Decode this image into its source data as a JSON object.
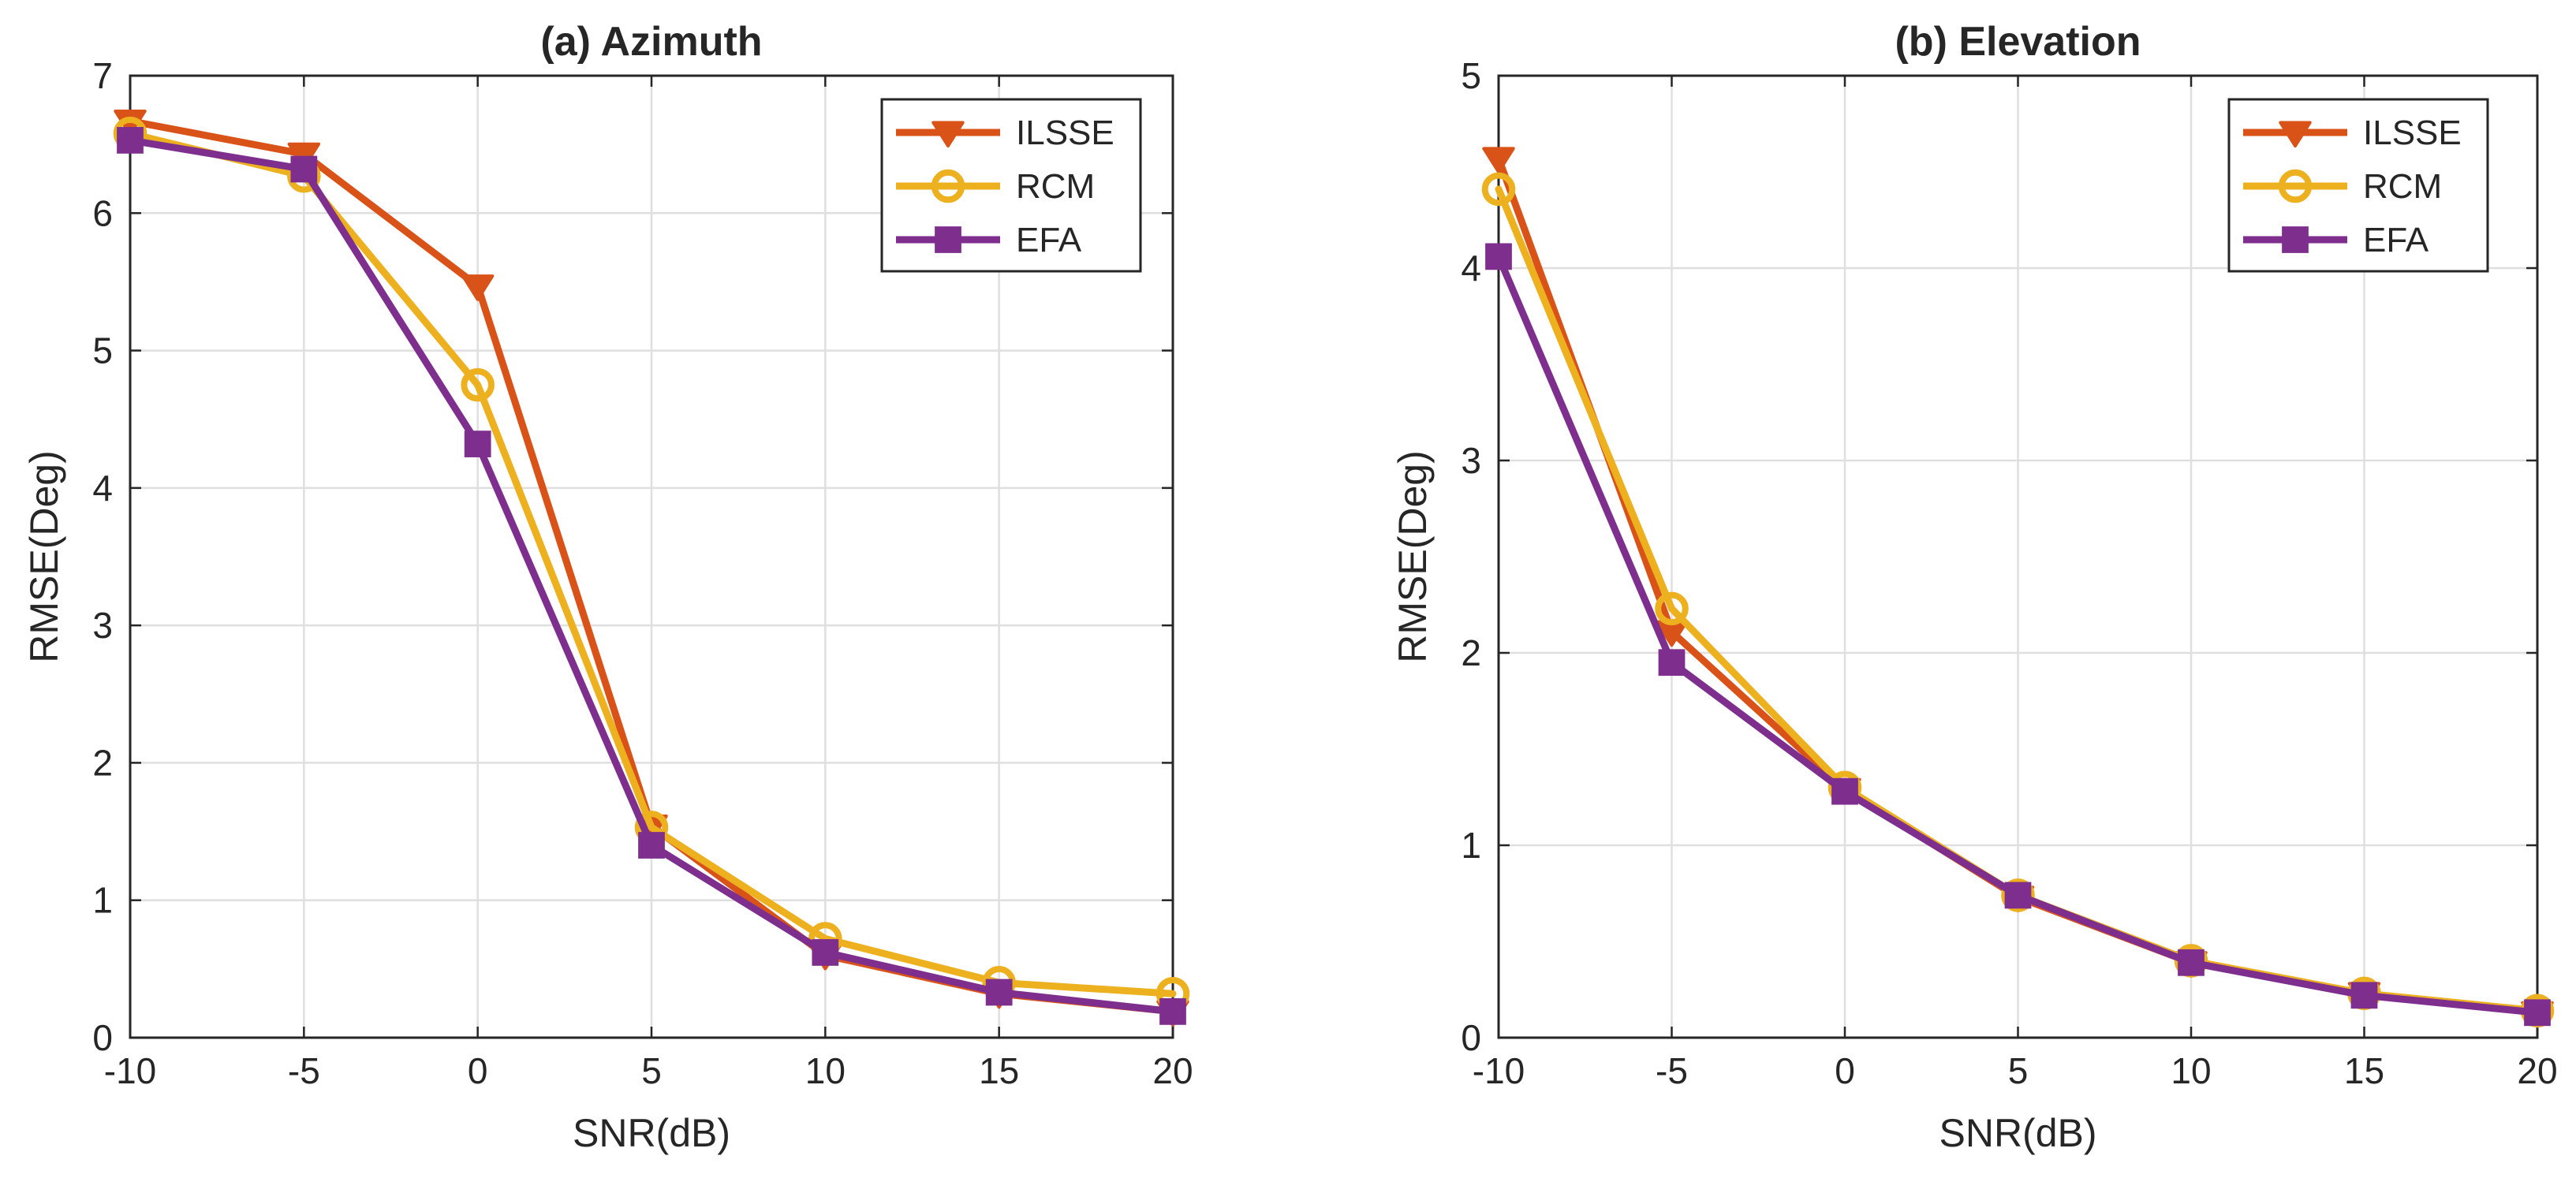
{
  "colors": {
    "ILSSE": "#D95319",
    "RCM": "#EDB120",
    "EFA": "#7E2F8E",
    "grid": "#DFDFDF",
    "axis": "#262626"
  },
  "chart_data": [
    {
      "type": "line",
      "title": "(a) Azimuth",
      "xlabel": "SNR(dB)",
      "ylabel": "RMSE(Deg)",
      "xlim": [
        -10,
        20
      ],
      "ylim": [
        0,
        7
      ],
      "xticks": [
        -10,
        -5,
        0,
        5,
        10,
        15,
        20
      ],
      "yticks": [
        0,
        1,
        2,
        3,
        4,
        5,
        6,
        7
      ],
      "xtick_labels": [
        "-10",
        "-5",
        "0",
        "5",
        "10",
        "15",
        "20"
      ],
      "ytick_labels": [
        "0",
        "1",
        "2",
        "3",
        "4",
        "5",
        "6",
        "7"
      ],
      "grid": true,
      "legend_location": "top-right",
      "x": [
        -10,
        -5,
        0,
        5,
        10,
        15,
        20
      ],
      "series": [
        {
          "name": "ILSSE",
          "marker": "triangle-down",
          "values": [
            6.67,
            6.43,
            5.47,
            1.54,
            0.6,
            0.32,
            0.19
          ]
        },
        {
          "name": "RCM",
          "marker": "circle",
          "values": [
            6.58,
            6.27,
            4.75,
            1.53,
            0.72,
            0.4,
            0.32
          ]
        },
        {
          "name": "EFA",
          "marker": "square",
          "values": [
            6.53,
            6.32,
            4.32,
            1.4,
            0.62,
            0.33,
            0.19
          ]
        }
      ]
    },
    {
      "type": "line",
      "title": "(b) Elevation",
      "xlabel": "SNR(dB)",
      "ylabel": "RMSE(Deg)",
      "xlim": [
        -10,
        20
      ],
      "ylim": [
        0,
        5
      ],
      "xticks": [
        -10,
        -5,
        0,
        5,
        10,
        15,
        20
      ],
      "yticks": [
        0,
        1,
        2,
        3,
        4,
        5
      ],
      "xtick_labels": [
        "-10",
        "-5",
        "0",
        "5",
        "10",
        "15",
        "20"
      ],
      "ytick_labels": [
        "0",
        "1",
        "2",
        "3",
        "4",
        "5"
      ],
      "grid": true,
      "legend_location": "top-right",
      "x": [
        -10,
        -5,
        0,
        5,
        10,
        15,
        20
      ],
      "series": [
        {
          "name": "ILSSE",
          "marker": "triangle-down",
          "values": [
            4.57,
            2.11,
            1.29,
            0.73,
            0.39,
            0.23,
            0.13
          ]
        },
        {
          "name": "RCM",
          "marker": "circle",
          "values": [
            4.41,
            2.23,
            1.3,
            0.74,
            0.4,
            0.23,
            0.14
          ]
        },
        {
          "name": "EFA",
          "marker": "square",
          "values": [
            4.06,
            1.95,
            1.28,
            0.74,
            0.39,
            0.22,
            0.13
          ]
        }
      ]
    }
  ]
}
